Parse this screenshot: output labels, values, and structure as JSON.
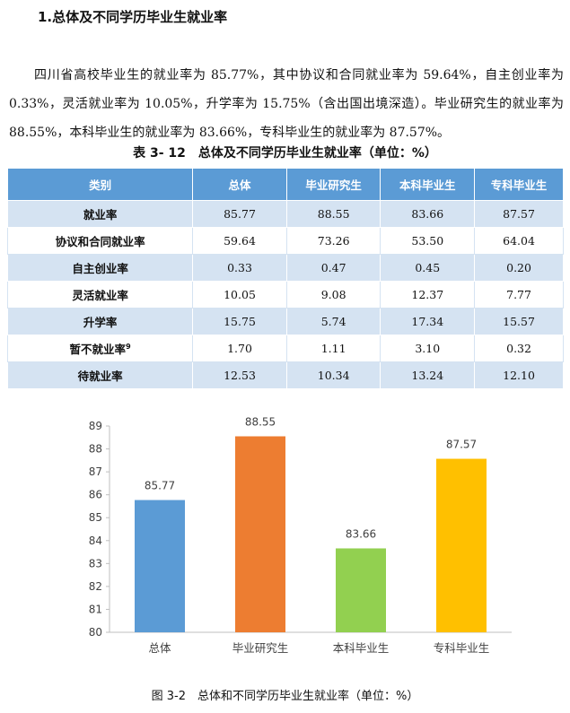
{
  "heading": "1.总体及不同学历毕业生就业率",
  "paragraph": "四川省高校毕业生的就业率为 85.77%，其中协议和合同就业率为 59.64%，自主创业率为 0.33%，灵活就业率为 10.05%，升学率为 15.75%（含出国出境深造）。毕业研究生的就业率为 88.55%，本科毕业生的就业率为 83.66%，专科毕业生的就业率为 87.57%。",
  "table": {
    "caption": "表 3- 12　总体及不同学历毕业生就业率（单位：%）",
    "headers": [
      "类别",
      "总体",
      "毕业研究生",
      "本科毕业生",
      "专科毕业生"
    ],
    "rows": [
      {
        "label": "就业率",
        "sup": "",
        "values": [
          "85.77",
          "88.55",
          "83.66",
          "87.57"
        ]
      },
      {
        "label": "协议和合同就业率",
        "sup": "",
        "values": [
          "59.64",
          "73.26",
          "53.50",
          "64.04"
        ]
      },
      {
        "label": "自主创业率",
        "sup": "",
        "values": [
          "0.33",
          "0.47",
          "0.45",
          "0.20"
        ]
      },
      {
        "label": "灵活就业率",
        "sup": "",
        "values": [
          "10.05",
          "9.08",
          "12.37",
          "7.77"
        ]
      },
      {
        "label": "升学率",
        "sup": "",
        "values": [
          "15.75",
          "5.74",
          "17.34",
          "15.57"
        ]
      },
      {
        "label": "暂不就业率",
        "sup": "9",
        "values": [
          "1.70",
          "1.11",
          "3.10",
          "0.32"
        ]
      },
      {
        "label": "待就业率",
        "sup": "",
        "values": [
          "12.53",
          "10.34",
          "13.24",
          "12.10"
        ]
      }
    ]
  },
  "chart_data": {
    "type": "bar",
    "categories": [
      "总体",
      "毕业研究生",
      "本科毕业生",
      "专科毕业生"
    ],
    "values": [
      85.77,
      88.55,
      83.66,
      87.57
    ],
    "colors": [
      "#5b9bd5",
      "#ed7d31",
      "#92d050",
      "#ffc000"
    ],
    "ylim": [
      80,
      89
    ],
    "yticks": [
      80,
      81,
      82,
      83,
      84,
      85,
      86,
      87,
      88,
      89
    ],
    "grid": false,
    "data_labels": [
      "85.77",
      "88.55",
      "83.66",
      "87.57"
    ]
  },
  "figure_caption": "图 3-2　总体和不同学历毕业生就业率（单位：%）"
}
